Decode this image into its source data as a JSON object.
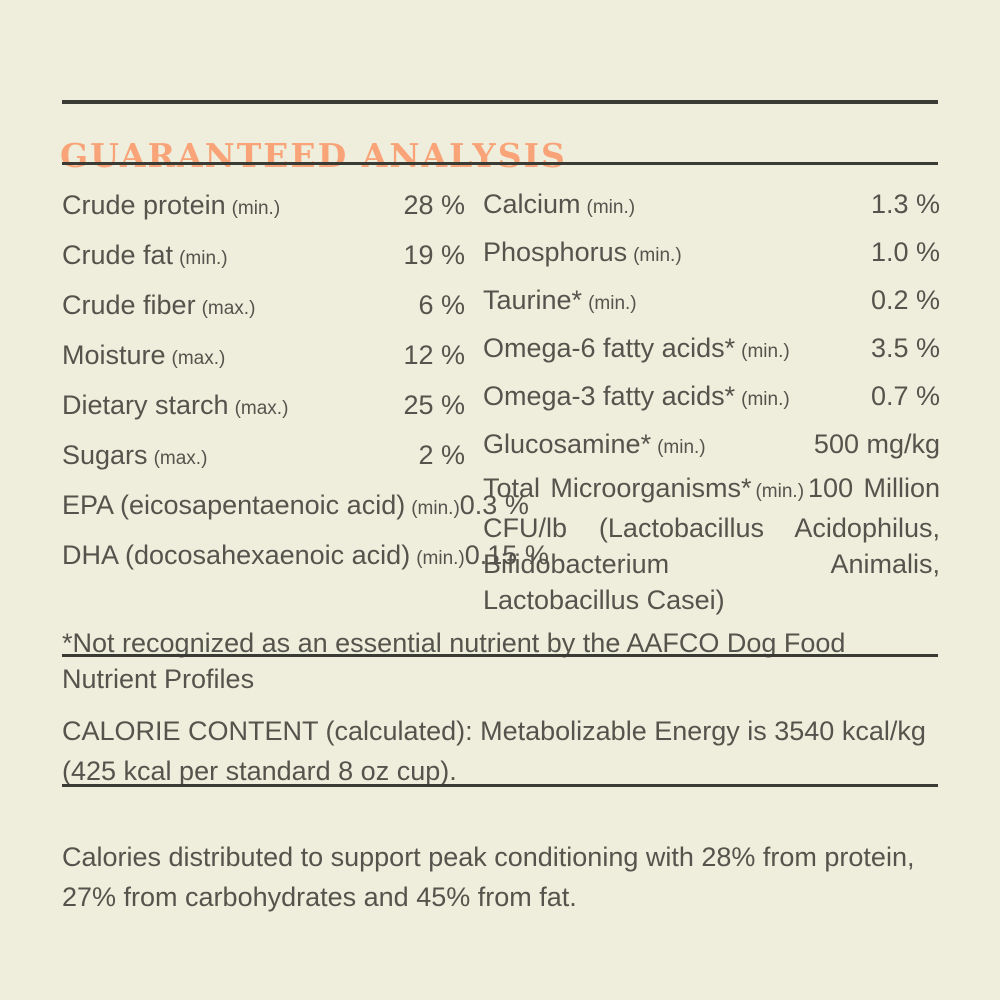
{
  "page": {
    "background_color": "#efeedd",
    "text_color": "#55544c",
    "rule_color": "#3b3b35",
    "accent_color": "#f9a478"
  },
  "header": {
    "title": "GUARANTEED ANALYSIS"
  },
  "analysis": {
    "left": [
      {
        "label": "Crude protein",
        "qualifier": "(min.)",
        "value": "28 %"
      },
      {
        "label": "Crude fat",
        "qualifier": "(min.)",
        "value": "19 %"
      },
      {
        "label": "Crude fiber",
        "qualifier": "(max.)",
        "value": "6 %"
      },
      {
        "label": "Moisture",
        "qualifier": "(max.)",
        "value": "12 %"
      },
      {
        "label": "Dietary starch",
        "qualifier": "(max.)",
        "value": "25 %"
      },
      {
        "label": "Sugars",
        "qualifier": "(max.)",
        "value": "2 %"
      },
      {
        "label": "EPA (eicosapentaenoic acid)",
        "qualifier": "(min.)",
        "value": "0.3 %"
      },
      {
        "label": "DHA (docosahexaenoic acid)",
        "qualifier": "(min.)",
        "value": "0.15 %"
      }
    ],
    "right": [
      {
        "label": "Calcium",
        "qualifier": "(min.)",
        "value": "1.3 %"
      },
      {
        "label": "Phosphorus",
        "qualifier": "(min.)",
        "value": "1.0 %"
      },
      {
        "label": "Taurine*",
        "qualifier": "(min.)",
        "value": "0.2 %"
      },
      {
        "label": "Omega-6 fatty acids*",
        "qualifier": "(min.)",
        "value": "3.5 %"
      },
      {
        "label": "Omega-3 fatty acids*",
        "qualifier": "(min.)",
        "value": "0.7 %"
      },
      {
        "label": "Glucosamine*",
        "qualifier": "(min.)",
        "value": "500 mg/kg"
      }
    ],
    "microorganisms": {
      "label": "Total Microorganisms*",
      "qualifier": "(min.)",
      "value": "100 Million CFU/lb",
      "detail": "(Lactobacillus Acidophilus, Bifidobacterium Animalis, Lactobacillus Casei)"
    }
  },
  "footnote": "*Not recognized as an essential nutrient by the AAFCO Dog Food Nutrient Profiles",
  "calorie_content": "CALORIE CONTENT (calculated): Metabolizable Energy is 3540 kcal/kg (425 kcal per standard 8 oz cup).",
  "calorie_distribution": "Calories distributed to support peak conditioning with 28% from protein, 27% from carbohydrates and 45% from fat."
}
